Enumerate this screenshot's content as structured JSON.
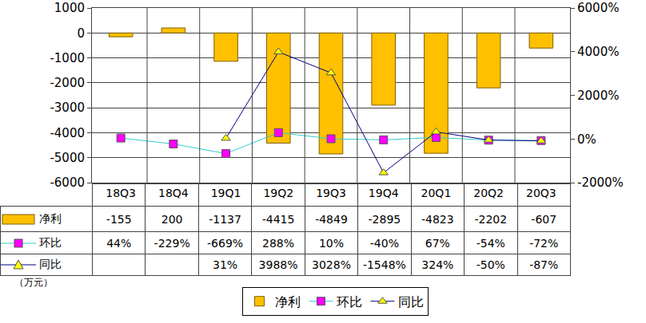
{
  "chart_data": {
    "type": "bar",
    "categories": [
      "18Q3",
      "18Q4",
      "19Q1",
      "19Q2",
      "19Q3",
      "19Q4",
      "20Q1",
      "20Q2",
      "20Q3"
    ],
    "series": [
      {
        "name": "净利",
        "type": "bar",
        "color": "#FFC000",
        "values": [
          -155,
          200,
          -1137,
          -4415,
          -4849,
          -2895,
          -4823,
          -2202,
          -607
        ]
      },
      {
        "name": "环比",
        "type": "line",
        "axis": "y2",
        "color": "#FF00FF",
        "marker": "square",
        "values": [
          44,
          -229,
          -669,
          288,
          10,
          -40,
          67,
          -54,
          -72
        ],
        "value_labels": [
          "44%",
          "-229%",
          "-669%",
          "288%",
          "10%",
          "-40%",
          "67%",
          "-54%",
          "-72%"
        ]
      },
      {
        "name": "同比",
        "type": "line",
        "axis": "y2",
        "color": "#FFFF00",
        "marker": "triangle-up",
        "values": [
          null,
          null,
          31,
          3988,
          3028,
          -1548,
          324,
          -50,
          -87
        ],
        "value_labels": [
          null,
          null,
          "31%",
          "3988%",
          "3028%",
          "-1548%",
          "324%",
          "-50%",
          "-87%"
        ]
      }
    ],
    "ylim": [
      -6000,
      1000
    ],
    "yticks": [
      -6000,
      -5000,
      -4000,
      -3000,
      -2000,
      -1000,
      0,
      1000
    ],
    "y2lim": [
      -2000,
      6000
    ],
    "y2ticks": [
      {
        "value": -2000,
        "label": "-2000%"
      },
      {
        "value": 0,
        "label": "0%"
      },
      {
        "value": 2000,
        "label": "2000%"
      },
      {
        "value": 4000,
        "label": "4000%"
      },
      {
        "value": 6000,
        "label": "6000%"
      }
    ],
    "ylabel": "（万元）",
    "grid": true,
    "data_labels": true,
    "legend": "bottom"
  }
}
